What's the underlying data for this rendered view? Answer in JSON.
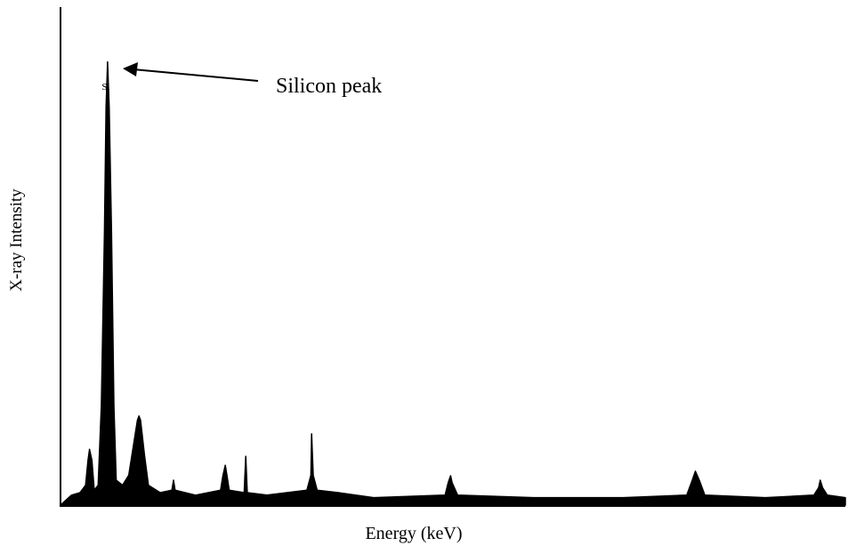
{
  "chart_data": {
    "type": "area",
    "xlabel": "Energy (keV)",
    "ylabel": "X-ray Intensity",
    "annotations": [
      {
        "text": "Si"
      },
      {
        "text": "Silicon peak"
      }
    ],
    "color": "#000000",
    "xlim": [
      0,
      100
    ],
    "ylim": [
      0,
      100
    ],
    "x": [
      0,
      1.4,
      2.5,
      3.2,
      3.5,
      3.7,
      4.0,
      4.3,
      4.8,
      5.2,
      5.6,
      5.8,
      6.0,
      6.2,
      6.5,
      6.8,
      7.1,
      7.9,
      8.7,
      9.3,
      9.8,
      10.0,
      10.2,
      10.7,
      11.2,
      12.7,
      14.2,
      14.4,
      14.6,
      17.2,
      20.4,
      20.7,
      21.0,
      21.2,
      21.5,
      23.4,
      23.6,
      23.8,
      26.3,
      31.4,
      31.9,
      32.0,
      32.2,
      32.7,
      35.4,
      39.9,
      49.0,
      49.4,
      49.7,
      49.9,
      50.6,
      60.3,
      71.7,
      79.8,
      80.5,
      80.9,
      81.4,
      82.1,
      89.8,
      96.0,
      96.6,
      96.8,
      97.1,
      97.7,
      100.0
    ],
    "values": [
      0,
      2,
      2.5,
      4,
      9,
      11.2,
      9,
      3,
      4,
      20,
      55,
      80,
      89,
      80,
      55,
      20,
      5,
      4,
      6,
      12,
      17,
      17.9,
      17,
      10,
      4,
      2.5,
      3,
      5,
      3,
      2,
      3,
      6,
      8,
      6,
      3,
      2.5,
      9.8,
      2.5,
      2,
      3,
      6,
      14.3,
      6,
      3,
      2.5,
      1.5,
      2,
      4.5,
      5.9,
      4.5,
      2,
      1.5,
      1.5,
      2,
      5,
      6.8,
      5,
      2,
      1.5,
      2,
      3.5,
      5,
      3.5,
      2,
      1.5
    ]
  }
}
